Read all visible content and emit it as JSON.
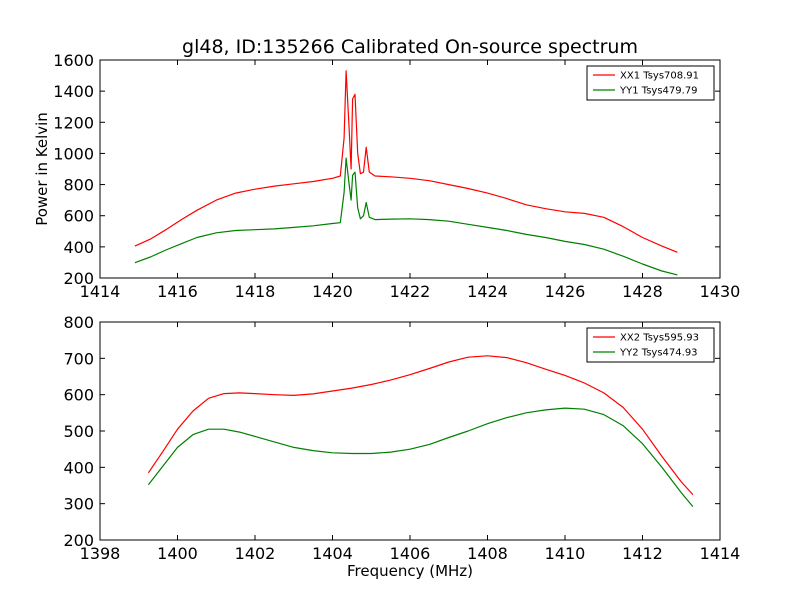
{
  "title": "gl48, ID:135266 Calibrated On-source spectrum",
  "chart_data": [
    {
      "type": "line",
      "title": "gl48, ID:135266 Calibrated On-source spectrum",
      "xlabel": "",
      "ylabel": "Power in Kelvin",
      "xlim": [
        1414,
        1430
      ],
      "ylim": [
        200,
        1600
      ],
      "xticks": [
        1414,
        1416,
        1418,
        1420,
        1422,
        1424,
        1426,
        1428,
        1430
      ],
      "yticks": [
        200,
        400,
        600,
        800,
        1000,
        1200,
        1400,
        1600
      ],
      "grid": false,
      "legend_position": "top-right",
      "series": [
        {
          "name": "XX1 Tsys708.91",
          "color": "#ff0000",
          "points": [
            [
              1414.9,
              405
            ],
            [
              1415.3,
              450
            ],
            [
              1415.7,
              510
            ],
            [
              1416.1,
              575
            ],
            [
              1416.5,
              635
            ],
            [
              1417.0,
              700
            ],
            [
              1417.5,
              745
            ],
            [
              1418.0,
              770
            ],
            [
              1418.5,
              790
            ],
            [
              1419.0,
              805
            ],
            [
              1419.5,
              820
            ],
            [
              1420.0,
              840
            ],
            [
              1420.2,
              855
            ],
            [
              1420.3,
              1100
            ],
            [
              1420.35,
              1530
            ],
            [
              1420.42,
              1200
            ],
            [
              1420.48,
              900
            ],
            [
              1420.52,
              1350
            ],
            [
              1420.58,
              1380
            ],
            [
              1420.65,
              1000
            ],
            [
              1420.72,
              870
            ],
            [
              1420.8,
              880
            ],
            [
              1420.87,
              1040
            ],
            [
              1420.95,
              880
            ],
            [
              1421.1,
              855
            ],
            [
              1421.5,
              850
            ],
            [
              1422.0,
              840
            ],
            [
              1422.5,
              825
            ],
            [
              1423.0,
              800
            ],
            [
              1423.5,
              775
            ],
            [
              1424.0,
              745
            ],
            [
              1424.5,
              710
            ],
            [
              1425.0,
              670
            ],
            [
              1425.5,
              645
            ],
            [
              1426.0,
              625
            ],
            [
              1426.5,
              615
            ],
            [
              1427.0,
              590
            ],
            [
              1427.5,
              530
            ],
            [
              1428.0,
              460
            ],
            [
              1428.5,
              405
            ],
            [
              1428.9,
              365
            ]
          ]
        },
        {
          "name": "YY1 Tsys479.79",
          "color": "#008000",
          "points": [
            [
              1414.9,
              298
            ],
            [
              1415.3,
              335
            ],
            [
              1415.7,
              380
            ],
            [
              1416.1,
              420
            ],
            [
              1416.5,
              460
            ],
            [
              1417.0,
              490
            ],
            [
              1417.5,
              505
            ],
            [
              1418.0,
              510
            ],
            [
              1418.5,
              515
            ],
            [
              1419.0,
              525
            ],
            [
              1419.5,
              535
            ],
            [
              1420.0,
              550
            ],
            [
              1420.2,
              555
            ],
            [
              1420.3,
              750
            ],
            [
              1420.35,
              970
            ],
            [
              1420.42,
              820
            ],
            [
              1420.48,
              700
            ],
            [
              1420.52,
              860
            ],
            [
              1420.58,
              880
            ],
            [
              1420.65,
              650
            ],
            [
              1420.72,
              580
            ],
            [
              1420.8,
              600
            ],
            [
              1420.87,
              685
            ],
            [
              1420.95,
              590
            ],
            [
              1421.1,
              575
            ],
            [
              1421.5,
              578
            ],
            [
              1422.0,
              580
            ],
            [
              1422.5,
              575
            ],
            [
              1423.0,
              565
            ],
            [
              1423.5,
              545
            ],
            [
              1424.0,
              525
            ],
            [
              1424.5,
              505
            ],
            [
              1425.0,
              480
            ],
            [
              1425.5,
              460
            ],
            [
              1426.0,
              435
            ],
            [
              1426.5,
              415
            ],
            [
              1427.0,
              385
            ],
            [
              1427.5,
              340
            ],
            [
              1428.0,
              290
            ],
            [
              1428.5,
              245
            ],
            [
              1428.9,
              220
            ]
          ]
        }
      ]
    },
    {
      "type": "line",
      "title": "",
      "xlabel": "Frequency (MHz)",
      "ylabel": "",
      "xlim": [
        1398,
        1414
      ],
      "ylim": [
        200,
        800
      ],
      "xticks": [
        1398,
        1400,
        1402,
        1404,
        1406,
        1408,
        1410,
        1412,
        1414
      ],
      "yticks": [
        200,
        300,
        400,
        500,
        600,
        700,
        800
      ],
      "grid": false,
      "legend_position": "top-right",
      "series": [
        {
          "name": "XX2 Tsys595.93",
          "color": "#ff0000",
          "points": [
            [
              1399.25,
              385
            ],
            [
              1399.6,
              440
            ],
            [
              1400.0,
              505
            ],
            [
              1400.4,
              555
            ],
            [
              1400.8,
              590
            ],
            [
              1401.2,
              603
            ],
            [
              1401.6,
              605
            ],
            [
              1402.0,
              603
            ],
            [
              1402.5,
              600
            ],
            [
              1403.0,
              598
            ],
            [
              1403.5,
              602
            ],
            [
              1404.0,
              610
            ],
            [
              1404.5,
              618
            ],
            [
              1405.0,
              628
            ],
            [
              1405.5,
              640
            ],
            [
              1406.0,
              655
            ],
            [
              1406.5,
              672
            ],
            [
              1407.0,
              690
            ],
            [
              1407.5,
              703
            ],
            [
              1408.0,
              707
            ],
            [
              1408.5,
              702
            ],
            [
              1409.0,
              688
            ],
            [
              1409.5,
              670
            ],
            [
              1410.0,
              653
            ],
            [
              1410.5,
              632
            ],
            [
              1411.0,
              605
            ],
            [
              1411.5,
              565
            ],
            [
              1412.0,
              505
            ],
            [
              1412.5,
              430
            ],
            [
              1413.0,
              360
            ],
            [
              1413.3,
              325
            ]
          ]
        },
        {
          "name": "YY2 Tsys474.93",
          "color": "#008000",
          "points": [
            [
              1399.25,
              352
            ],
            [
              1399.6,
              400
            ],
            [
              1400.0,
              455
            ],
            [
              1400.4,
              490
            ],
            [
              1400.8,
              505
            ],
            [
              1401.2,
              505
            ],
            [
              1401.6,
              497
            ],
            [
              1402.0,
              485
            ],
            [
              1402.5,
              470
            ],
            [
              1403.0,
              455
            ],
            [
              1403.5,
              446
            ],
            [
              1404.0,
              440
            ],
            [
              1404.5,
              438
            ],
            [
              1405.0,
              438
            ],
            [
              1405.5,
              442
            ],
            [
              1406.0,
              450
            ],
            [
              1406.5,
              463
            ],
            [
              1407.0,
              482
            ],
            [
              1407.5,
              500
            ],
            [
              1408.0,
              520
            ],
            [
              1408.5,
              537
            ],
            [
              1409.0,
              550
            ],
            [
              1409.5,
              558
            ],
            [
              1410.0,
              563
            ],
            [
              1410.5,
              560
            ],
            [
              1411.0,
              545
            ],
            [
              1411.5,
              515
            ],
            [
              1412.0,
              465
            ],
            [
              1412.5,
              400
            ],
            [
              1413.0,
              330
            ],
            [
              1413.3,
              292
            ]
          ]
        }
      ]
    }
  ]
}
